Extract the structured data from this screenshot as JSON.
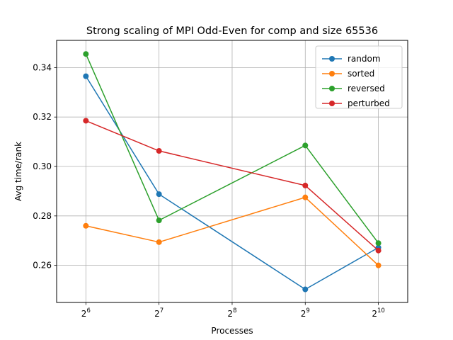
{
  "chart_data": {
    "type": "line",
    "title": "Strong scaling of MPI Odd-Even for comp and size 65536",
    "xlabel": "Processes",
    "ylabel": "Avg time/rank",
    "x_scale": "log2",
    "x": [
      64,
      128,
      512,
      1024
    ],
    "xticks": [
      {
        "base": "2",
        "exp": "6"
      },
      {
        "base": "2",
        "exp": "7"
      },
      {
        "base": "2",
        "exp": "8"
      },
      {
        "base": "2",
        "exp": "9"
      },
      {
        "base": "2",
        "exp": "10"
      }
    ],
    "xtick_values": [
      64,
      128,
      256,
      512,
      1024
    ],
    "ylim": [
      0.245,
      0.351
    ],
    "yticks": [
      0.26,
      0.28,
      0.3,
      0.32,
      0.34
    ],
    "ytick_labels": [
      "0.26",
      "0.28",
      "0.30",
      "0.32",
      "0.34"
    ],
    "grid": true,
    "legend_position": "top-right",
    "series": [
      {
        "name": "random",
        "color": "#1f77b4",
        "values": [
          0.3365,
          0.2888,
          0.2503,
          0.2672
        ]
      },
      {
        "name": "sorted",
        "color": "#ff7f0e",
        "values": [
          0.276,
          0.2694,
          0.2875,
          0.26
        ]
      },
      {
        "name": "reversed",
        "color": "#2ca02c",
        "values": [
          0.3455,
          0.2782,
          0.3085,
          0.269
        ]
      },
      {
        "name": "perturbed",
        "color": "#d62728",
        "values": [
          0.3185,
          0.3063,
          0.2923,
          0.266
        ]
      }
    ]
  }
}
